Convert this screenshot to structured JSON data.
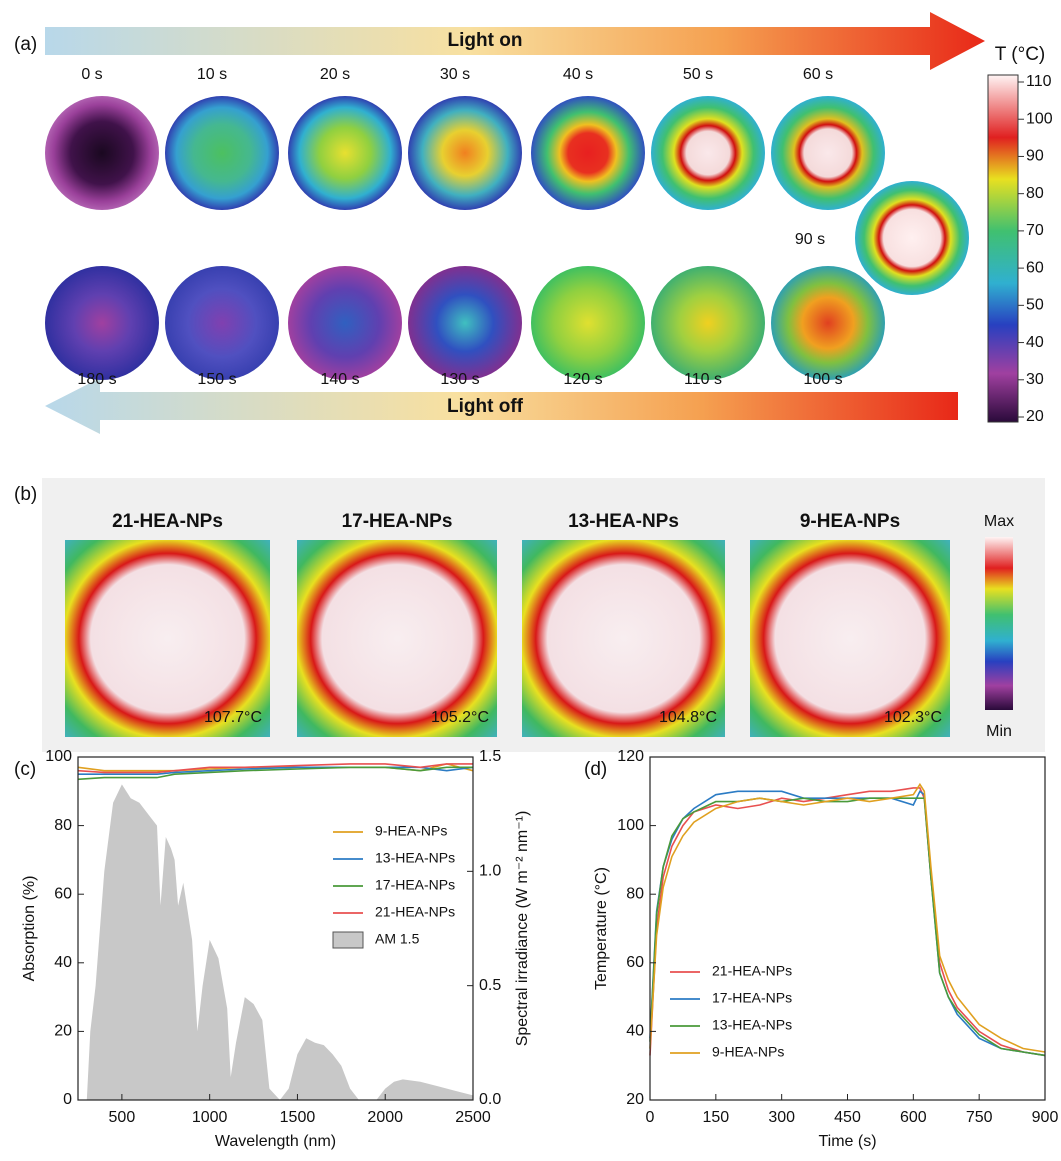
{
  "panel_labels": [
    "(a)",
    "(b)",
    "(c)",
    "(d)"
  ],
  "thermal_sequence": {
    "light_on": "Light on",
    "light_off": "Light off",
    "times_heating": [
      "0 s",
      "10 s",
      "20 s",
      "30 s",
      "40 s",
      "50 s",
      "60 s"
    ],
    "time_peak": "90 s",
    "times_cooling": [
      "180 s",
      "150 s",
      "140 s",
      "130 s",
      "120 s",
      "110 s",
      "100 s"
    ],
    "colorbar": {
      "label": "T (°C)",
      "ticks": [
        20,
        30,
        40,
        50,
        60,
        70,
        80,
        90,
        100,
        110
      ]
    }
  },
  "comparison": {
    "samples": [
      {
        "name": "21-HEA-NPs",
        "max_temp": "107.7°C"
      },
      {
        "name": "17-HEA-NPs",
        "max_temp": "105.2°C"
      },
      {
        "name": "13-HEA-NPs",
        "max_temp": "104.8°C"
      },
      {
        "name": "9-HEA-NPs",
        "max_temp": "102.3°C"
      }
    ],
    "colorbar_max": "Max",
    "colorbar_min": "Min"
  },
  "chart_data": [
    {
      "type": "line",
      "xlabel": "Wavelength (nm)",
      "ylabel": "Absorption (%)",
      "y2label": "Spectral irradiance (W m⁻² nm⁻¹)",
      "xlim": [
        250,
        2500
      ],
      "xticks": [
        500,
        1000,
        1500,
        2000,
        2500
      ],
      "ylim": [
        0,
        100
      ],
      "yticks": [
        0,
        20,
        40,
        60,
        80,
        100
      ],
      "y2lim": [
        0,
        1.5
      ],
      "y2ticks": [
        {
          "value": 0,
          "label": "0.0"
        },
        0.5,
        {
          "value": 1,
          "label": "1.0"
        },
        1.5
      ],
      "legend": "upper right",
      "series": [
        {
          "name": "9-HEA-NPs",
          "color": "#e0a020",
          "x": [
            250,
            400,
            500,
            700,
            800,
            1000,
            1200,
            1500,
            1800,
            2000,
            2200,
            2350,
            2500
          ],
          "values": [
            97,
            96,
            96,
            96,
            96,
            96.5,
            97,
            97,
            97,
            97,
            96,
            98,
            96
          ]
        },
        {
          "name": "13-HEA-NPs",
          "color": "#2b7bc4",
          "x": [
            250,
            400,
            500,
            700,
            800,
            1000,
            1200,
            1500,
            1800,
            2000,
            2200,
            2350,
            2500
          ],
          "values": [
            95,
            95,
            95,
            95,
            95.5,
            96,
            96.5,
            97,
            97,
            97,
            97,
            96,
            97
          ]
        },
        {
          "name": "17-HEA-NPs",
          "color": "#4a9a3a",
          "x": [
            250,
            400,
            500,
            700,
            800,
            1000,
            1200,
            1500,
            1800,
            2000,
            2200,
            2350,
            2500
          ],
          "values": [
            93.5,
            94,
            94,
            94,
            95,
            95.5,
            96,
            96.5,
            97,
            97,
            96,
            97,
            97
          ]
        },
        {
          "name": "21-HEA-NPs",
          "color": "#e85050",
          "x": [
            250,
            400,
            500,
            700,
            800,
            1000,
            1200,
            1500,
            1800,
            2000,
            2200,
            2350,
            2500
          ],
          "values": [
            96,
            95.5,
            95.5,
            95.5,
            96,
            97,
            97,
            97.5,
            98,
            98,
            97,
            98,
            98
          ]
        },
        {
          "name": "AM 1.5",
          "color": "#c8c8c8",
          "style": "area",
          "axis": "y2",
          "x": [
            280,
            300,
            320,
            350,
            400,
            450,
            500,
            550,
            600,
            650,
            700,
            720,
            750,
            780,
            800,
            820,
            850,
            900,
            930,
            960,
            1000,
            1050,
            1100,
            1120,
            1150,
            1200,
            1250,
            1300,
            1340,
            1400,
            1450,
            1500,
            1550,
            1600,
            1650,
            1700,
            1750,
            1800,
            1850,
            1950,
            2000,
            2050,
            2100,
            2200,
            2300,
            2400,
            2500
          ],
          "values": [
            0,
            0,
            0.3,
            0.5,
            1.0,
            1.3,
            1.38,
            1.32,
            1.3,
            1.25,
            1.2,
            0.85,
            1.15,
            1.1,
            1.05,
            0.85,
            0.95,
            0.7,
            0.3,
            0.5,
            0.7,
            0.62,
            0.4,
            0.1,
            0.25,
            0.45,
            0.42,
            0.35,
            0.05,
            0,
            0.05,
            0.2,
            0.27,
            0.25,
            0.24,
            0.2,
            0.15,
            0.05,
            0,
            0,
            0.05,
            0.08,
            0.09,
            0.08,
            0.06,
            0.04,
            0.02
          ]
        }
      ]
    },
    {
      "type": "line",
      "xlabel": "Time (s)",
      "ylabel": "Temperature (°C)",
      "x": [
        0,
        15,
        30,
        50,
        75,
        100,
        150,
        200,
        250,
        300,
        350,
        400,
        450,
        500,
        550,
        600,
        615,
        625,
        640,
        660,
        680,
        700,
        750,
        800,
        850,
        900
      ],
      "xlim": [
        0,
        900
      ],
      "xticks": [
        0,
        150,
        300,
        450,
        600,
        750,
        900
      ],
      "ylim": [
        20,
        120
      ],
      "yticks": [
        20,
        40,
        60,
        80,
        100,
        120
      ],
      "legend": "lower left",
      "series": [
        {
          "name": "21-HEA-NPs",
          "color": "#e85050",
          "values": [
            33,
            70,
            85,
            94,
            100,
            104,
            106,
            105,
            106,
            108,
            107,
            108,
            109,
            110,
            110,
            111,
            111,
            108,
            85,
            60,
            52,
            47,
            40,
            36,
            34,
            33
          ]
        },
        {
          "name": "17-HEA-NPs",
          "color": "#2b7bc4",
          "values": [
            38,
            75,
            88,
            96,
            102,
            105,
            109,
            110,
            110,
            110,
            108,
            108,
            108,
            108,
            108,
            106,
            110,
            109,
            85,
            57,
            50,
            45,
            38,
            35,
            34,
            33
          ]
        },
        {
          "name": "13-HEA-NPs",
          "color": "#4a9a3a",
          "values": [
            37,
            74,
            88,
            97,
            102,
            104,
            107,
            107,
            108,
            107,
            108,
            107,
            107,
            108,
            108,
            108,
            108,
            108,
            85,
            57,
            50,
            46,
            39,
            35,
            34,
            33
          ]
        },
        {
          "name": "9-HEA-NPs",
          "color": "#e0a020",
          "values": [
            35,
            68,
            82,
            91,
            97,
            101,
            105,
            107,
            108,
            107,
            106,
            107,
            108,
            107,
            108,
            109,
            112,
            110,
            88,
            62,
            55,
            50,
            42,
            38,
            35,
            34
          ]
        }
      ]
    }
  ]
}
